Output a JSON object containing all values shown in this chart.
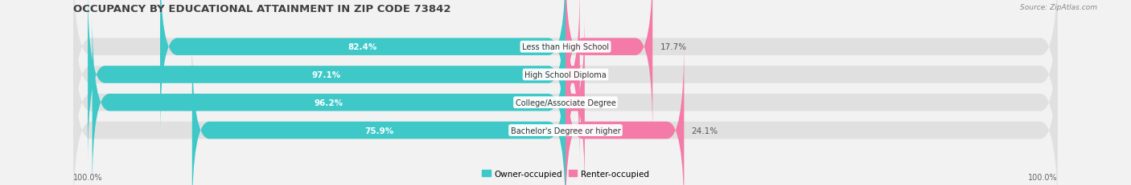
{
  "title": "OCCUPANCY BY EDUCATIONAL ATTAINMENT IN ZIP CODE 73842",
  "source": "Source: ZipAtlas.com",
  "categories": [
    "Less than High School",
    "High School Diploma",
    "College/Associate Degree",
    "Bachelor's Degree or higher"
  ],
  "owner_pct": [
    82.4,
    97.1,
    96.2,
    75.9
  ],
  "renter_pct": [
    17.7,
    2.9,
    3.9,
    24.1
  ],
  "owner_color": "#3ec8c8",
  "renter_color": "#f47aa8",
  "bg_color": "#f2f2f2",
  "bar_bg_color": "#e0e0e0",
  "title_fontsize": 9.5,
  "label_fontsize": 7.5,
  "source_fontsize": 6.5,
  "tick_fontsize": 7,
  "axis_label_left": "100.0%",
  "axis_label_right": "100.0%",
  "legend_label_owner": "Owner-occupied",
  "legend_label_renter": "Renter-occupied"
}
